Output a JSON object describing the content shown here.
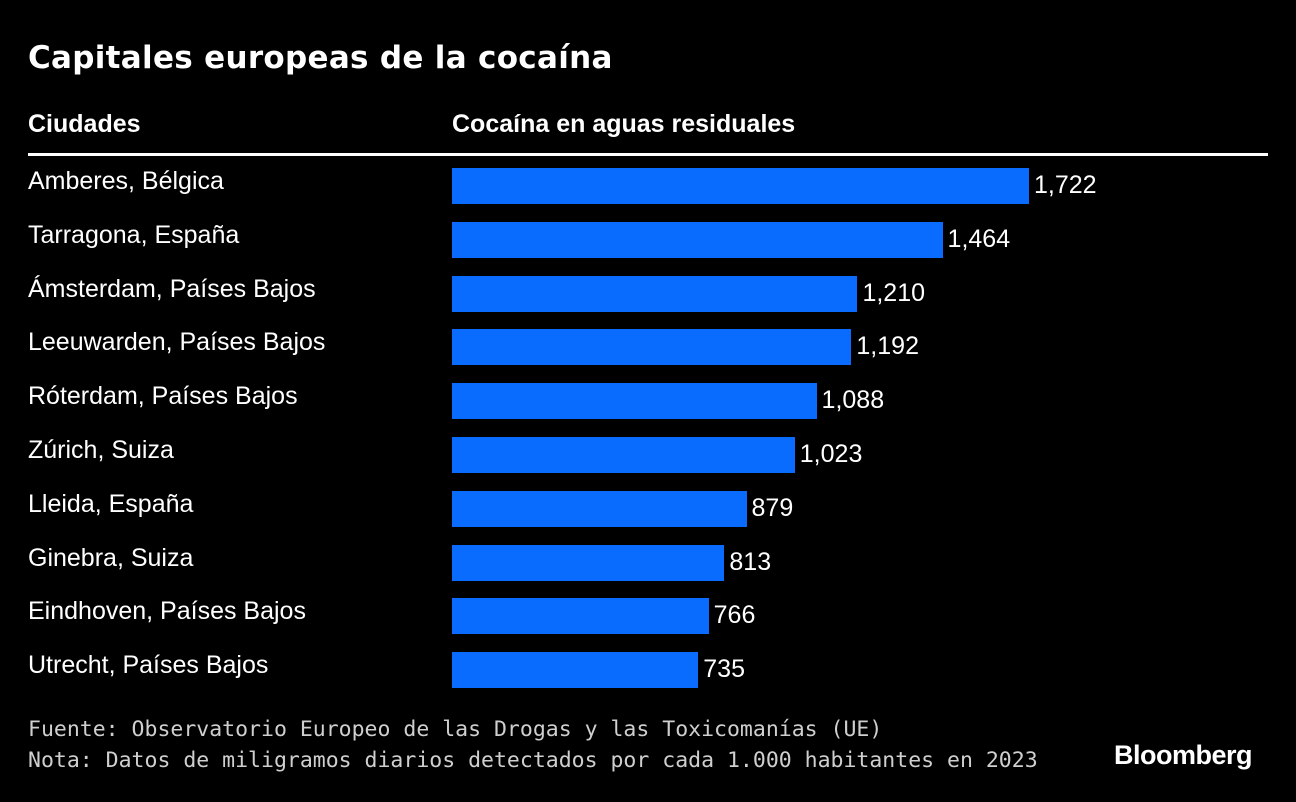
{
  "title": "Capitales europeas de la cocaína",
  "chart_data": {
    "type": "bar",
    "orientation": "horizontal",
    "title": "Capitales europeas de la cocaína",
    "category_header": "Ciudades",
    "value_header": "Cocaína en aguas residuales",
    "categories": [
      "Amberes, Bélgica",
      "Tarragona, España",
      "Ámsterdam, Países Bajos",
      "Leeuwarden, Países Bajos",
      "Róterdam, Países Bajos",
      "Zúrich, Suiza",
      "Lleida, España",
      "Ginebra, Suiza",
      "Eindhoven, Países Bajos",
      "Utrecht, Países Bajos"
    ],
    "values": [
      1722,
      1464,
      1210,
      1192,
      1088,
      1023,
      879,
      813,
      766,
      735
    ],
    "value_labels": [
      "1,722",
      "1,464",
      "1,210",
      "1,192",
      "1,088",
      "1,023",
      "879",
      "813",
      "766",
      "735"
    ],
    "bar_color": "#0a6cff",
    "grid": false
  },
  "footer": {
    "source": "Fuente: Observatorio Europeo de las Drogas y las Toxicomanías (UE)",
    "note": "Nota: Datos de miligramos diarios detectados por cada 1.000 habitantes en 2023",
    "logo": "Bloomberg"
  }
}
